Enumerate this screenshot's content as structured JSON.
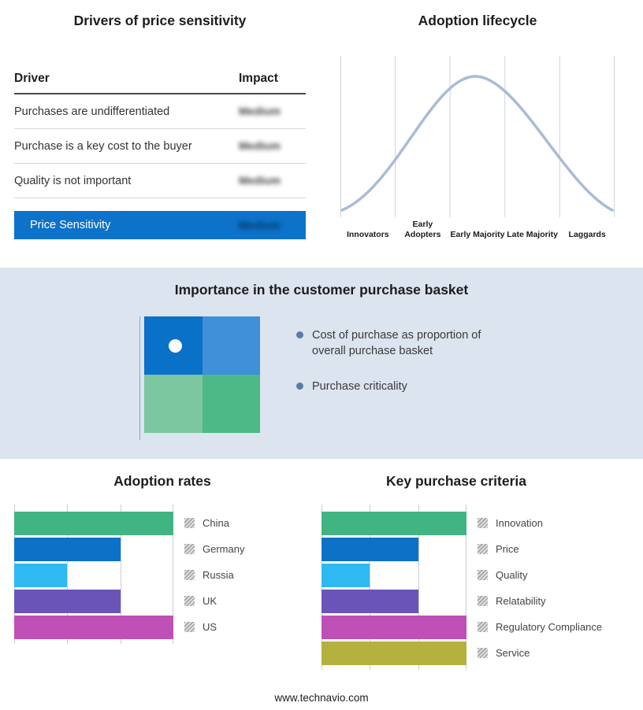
{
  "page": {
    "footer": "www.technavio.com"
  },
  "drivers_table": {
    "title": "Drivers of price sensitivity",
    "columns": {
      "driver": "Driver",
      "impact": "Impact"
    },
    "rows": [
      {
        "driver": "Purchases are undifferentiated",
        "impact": "Medium"
      },
      {
        "driver": "Purchase is a key cost to the buyer",
        "impact": "Medium"
      },
      {
        "driver": "Quality is not important",
        "impact": "Medium"
      }
    ],
    "summary": {
      "label": "Price Sensitivity",
      "impact": "Medium"
    },
    "accent_color": "#0d72c9"
  },
  "lifecycle": {
    "title": "Adoption lifecycle",
    "stages": [
      "Innovators",
      "Early Adopters",
      "Early Majority",
      "Late Majority",
      "Laggards"
    ],
    "curve_color": "#a9bcd6"
  },
  "basket": {
    "title": "Importance in the customer purchase basket",
    "bullets": [
      "Cost of purchase as proportion of overall purchase basket",
      "Purchase criticality"
    ],
    "quadrant_colors": {
      "top_left": "#0a71c8",
      "top_right": "#3f90d9",
      "bottom_left": "#7cc6a0",
      "bottom_right": "#4db987"
    },
    "bullet_color": "#5b7aa6"
  },
  "chart_data": [
    {
      "type": "bar",
      "orientation": "horizontal",
      "title": "Adoption rates",
      "categories": [
        "China",
        "Germany",
        "Russia",
        "UK",
        "US"
      ],
      "values": [
        3,
        2,
        1,
        2,
        3
      ],
      "xlim": [
        0,
        3
      ],
      "grid": true,
      "legend_position": "right",
      "colors": [
        "#42b483",
        "#0c72c7",
        "#2fb9f2",
        "#6b54b8",
        "#bf50b6"
      ]
    },
    {
      "type": "bar",
      "orientation": "horizontal",
      "title": "Key purchase criteria",
      "categories": [
        "Innovation",
        "Price",
        "Quality",
        "Relatability",
        "Regulatory Compliance",
        "Service"
      ],
      "values": [
        3,
        2,
        1,
        2,
        3,
        3
      ],
      "xlim": [
        0,
        3
      ],
      "grid": true,
      "legend_position": "right",
      "colors": [
        "#42b483",
        "#0c72c7",
        "#2fb9f2",
        "#6b54b8",
        "#bf50b6",
        "#b5b13e"
      ]
    },
    {
      "type": "line",
      "title": "Adoption lifecycle",
      "x": [
        "Innovators",
        "Early Adopters",
        "Early Majority",
        "Late Majority",
        "Laggards"
      ],
      "shape": "bell curve peaking over Early Majority"
    }
  ]
}
